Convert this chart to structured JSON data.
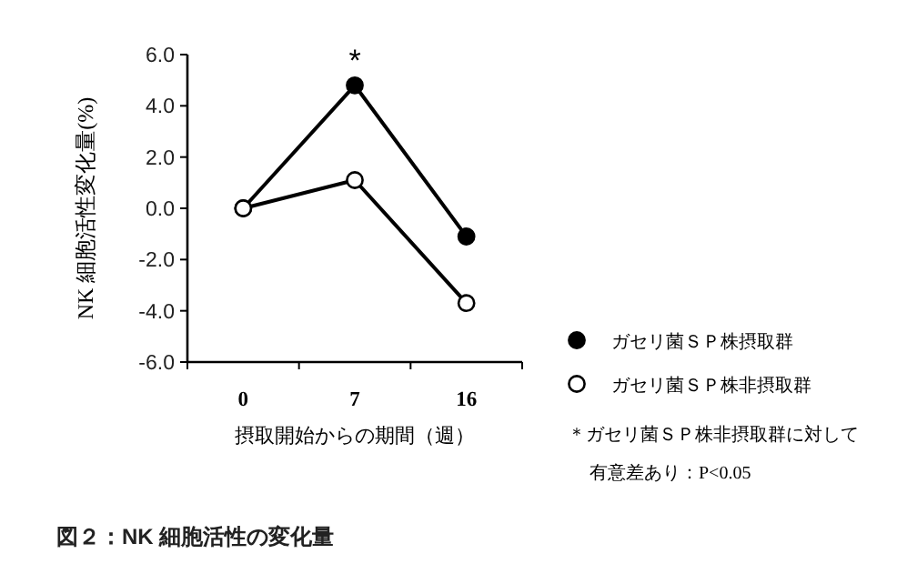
{
  "chart_data": {
    "type": "line",
    "title": "図２：NK 細胞活性の変化量",
    "xlabel": "摂取開始からの期間（週）",
    "ylabel": "NK 細胞活性変化量(%)",
    "categories": [
      "0",
      "7",
      "16"
    ],
    "series": [
      {
        "name": "ガセリ菌ＳＰ株摂取群",
        "color": "#000000",
        "values": [
          0,
          4.8,
          -1.1
        ]
      },
      {
        "name": "ガセリ菌ＳＰ株非摂取群",
        "color": "#ffffff",
        "values": [
          0,
          1.1,
          -3.7
        ]
      }
    ],
    "ylim": [
      -6,
      6
    ],
    "yticks": [
      {
        "value": -6,
        "label": "-6.0"
      },
      {
        "value": -4,
        "label": "-4.0"
      },
      {
        "value": -2,
        "label": "-2.0"
      },
      {
        "value": 0,
        "label": "0.0"
      },
      {
        "value": 2,
        "label": "2.0"
      },
      {
        "value": 4,
        "label": "4.0"
      },
      {
        "value": 6,
        "label": "6.0"
      }
    ],
    "annotations": [
      {
        "text": "*",
        "x": "7",
        "y": 4.8
      },
      "＊ガセリ菌ＳＰ株非摂取群に対して",
      "有意差あり：P<0.05"
    ],
    "legend": "bottom right",
    "marker": "circle",
    "line_style": "solid",
    "grid": false
  }
}
